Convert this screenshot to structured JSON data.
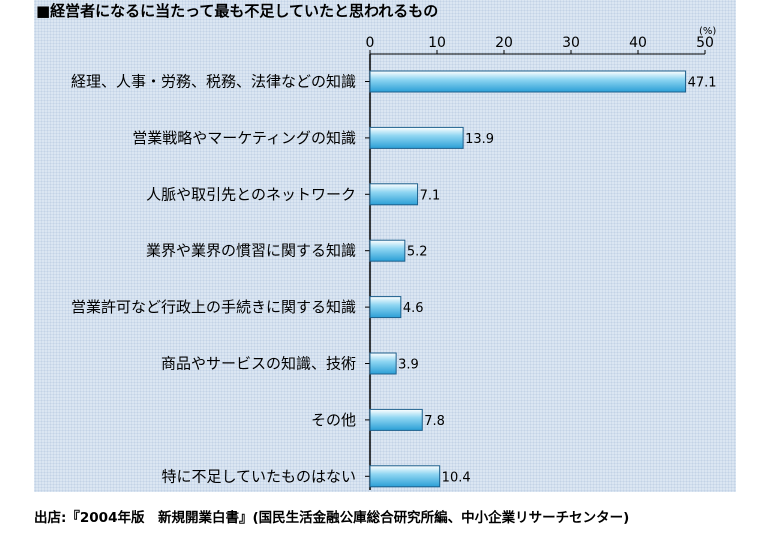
{
  "chart_data": {
    "type": "bar",
    "orientation": "horizontal",
    "title": "■経営者になるに当たって最も不足していたと思われるもの",
    "unit": "(%)",
    "xlim": [
      0,
      50
    ],
    "ticks": [
      "0",
      "10",
      "20",
      "30",
      "40",
      "50"
    ],
    "tick_values": [
      0,
      10,
      20,
      30,
      40,
      50
    ],
    "categories": [
      "経理、人事・労務、税務、法律などの知識",
      "営業戦略やマーケティングの知識",
      "人脈や取引先とのネットワーク",
      "業界や業界の慣習に関する知識",
      "営業許可など行政上の手続きに関する知識",
      "商品やサービスの知識、技術",
      "その他",
      "特に不足していたものはない"
    ],
    "values": [
      47.1,
      13.9,
      7.1,
      5.2,
      4.6,
      3.9,
      7.8,
      10.4
    ],
    "value_labels": [
      "47.1",
      "13.9",
      "7.1",
      "5.2",
      "4.6",
      "3.9",
      "7.8",
      "10.4"
    ],
    "colors": {
      "bar_light": "#ffffff",
      "bar_mid": "#8fd6f2",
      "bar_dark": "#2b9fd6",
      "bar_edge": "#1c5f8c",
      "axis": "#000000"
    }
  },
  "source": "出店:『2004年版　新規開業白書』(国民生活金融公庫総合研究所編、中小企業リサーチセンター)"
}
